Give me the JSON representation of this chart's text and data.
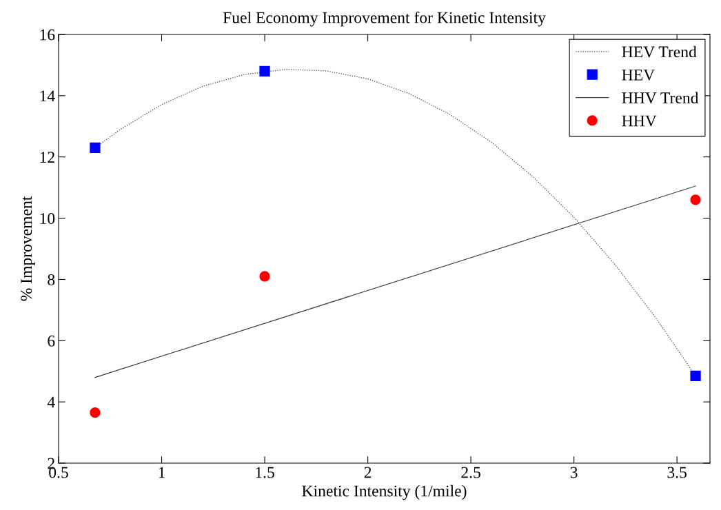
{
  "chart_data": {
    "type": "scatter",
    "title": "Fuel Economy Improvement for Kinetic Intensity",
    "xlabel": "Kinetic Intensity (1/mile)",
    "ylabel": "% Improvement",
    "xlim": [
      0.5,
      3.66
    ],
    "xticks": [
      0.5,
      1,
      1.5,
      2,
      2.5,
      3,
      3.5
    ],
    "ylim": [
      2,
      16
    ],
    "yticks": [
      2,
      4,
      6,
      8,
      10,
      12,
      14,
      16
    ],
    "grid": false,
    "legend": "top right",
    "series": [
      {
        "name": "HEV Trend",
        "type": "line",
        "color": "#404040",
        "line_style": "dotted",
        "marker": "none",
        "x": [
          0.677,
          0.8,
          1.0,
          1.2,
          1.4,
          1.6,
          1.8,
          2.0,
          2.2,
          2.4,
          2.6,
          2.8,
          3.0,
          3.2,
          3.4,
          3.59
        ],
        "values": [
          12.3,
          12.9,
          13.71,
          14.31,
          14.69,
          14.86,
          14.81,
          14.55,
          14.07,
          13.38,
          12.48,
          11.36,
          10.03,
          8.48,
          6.72,
          4.85
        ]
      },
      {
        "name": "HEV",
        "color": "#0000ff",
        "marker": "square",
        "x": [
          0.677,
          1.5,
          3.59
        ],
        "values": [
          12.3,
          14.8,
          4.85
        ]
      },
      {
        "name": "HHV Trend",
        "type": "line",
        "color": "#404040",
        "line_style": "solid",
        "marker": "none",
        "x": [
          0.677,
          3.59
        ],
        "values": [
          4.8,
          11.05
        ]
      },
      {
        "name": "HHV",
        "color": "#ff0000",
        "marker": "circle",
        "x": [
          0.677,
          1.5,
          3.59
        ],
        "values": [
          3.65,
          8.1,
          10.6
        ]
      }
    ]
  }
}
